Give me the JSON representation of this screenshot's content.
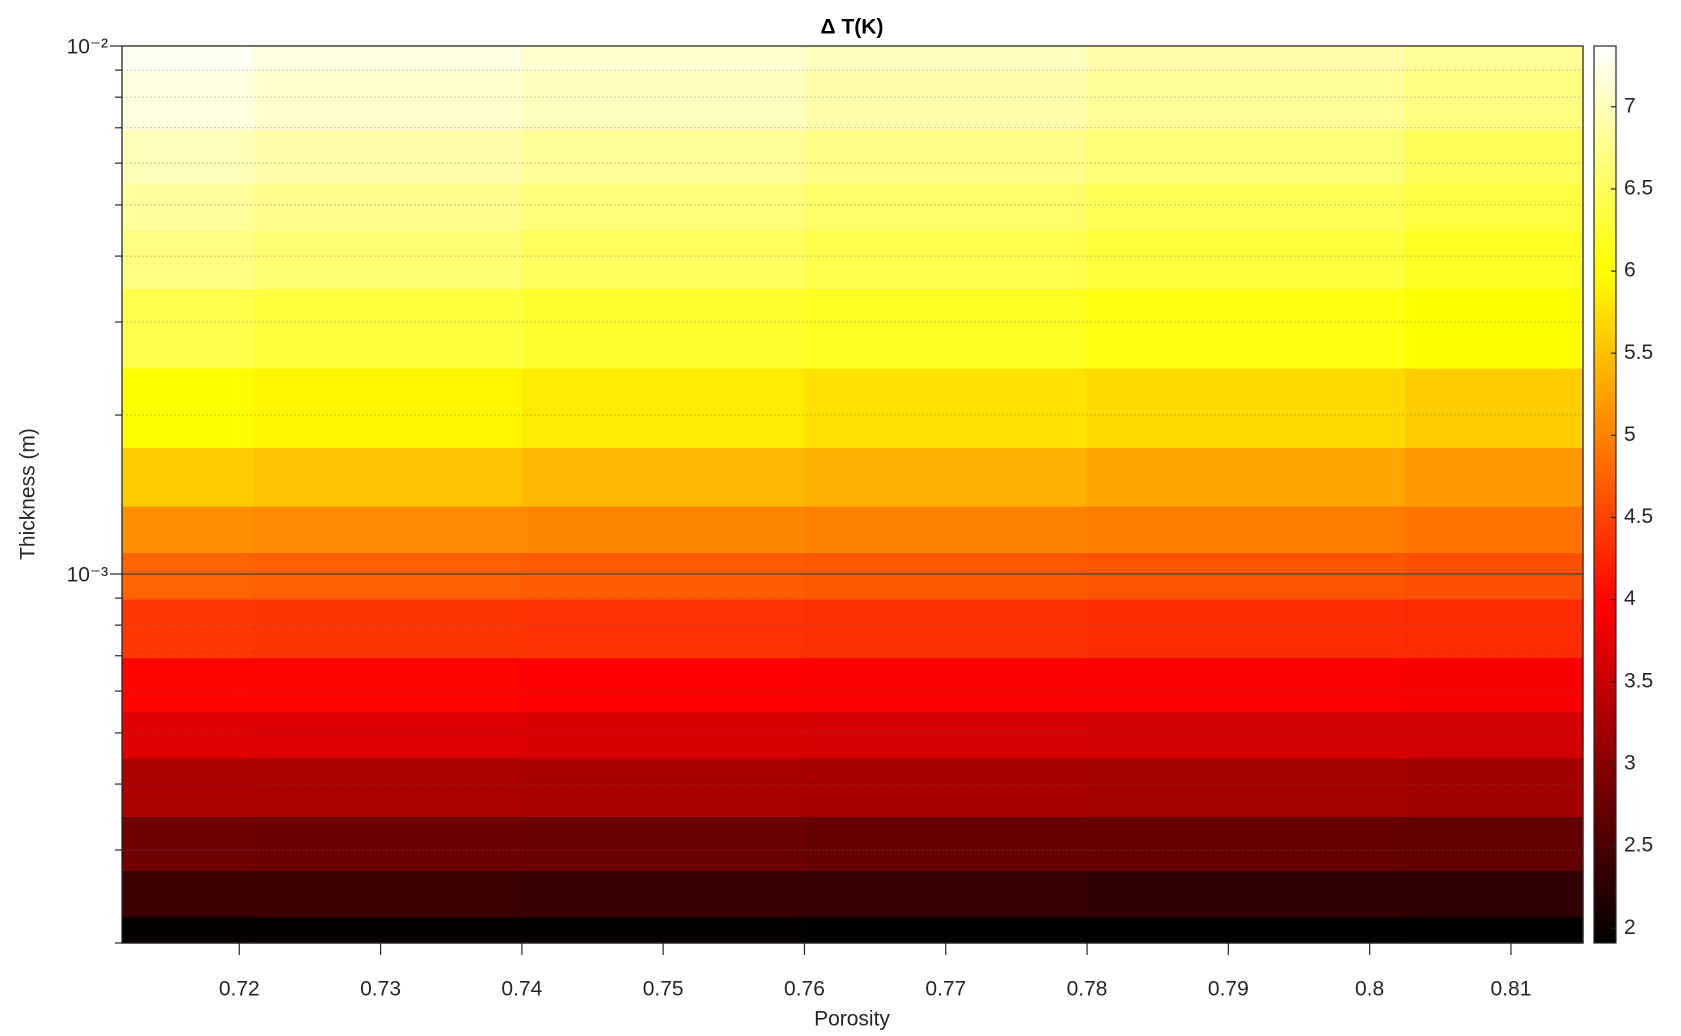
{
  "chart_data": {
    "type": "heatmap",
    "title": "Δ T(K)",
    "x_label": "Porosity",
    "y_label": "Thickness (m)",
    "colormap": "hot",
    "clim": [
      1.91,
      7.37
    ],
    "cticks": [
      2,
      2.5,
      3,
      3.5,
      4,
      4.5,
      5,
      5.5,
      6,
      6.5,
      7
    ],
    "xlim": [
      0.7117,
      0.8151
    ],
    "xticks": [
      0.72,
      0.73,
      0.74,
      0.75,
      0.76,
      0.77,
      0.78,
      0.79,
      0.8,
      0.81
    ],
    "ylim": [
      0.0002,
      0.01
    ],
    "y_log": true,
    "yticks": [
      {
        "value": 0.001,
        "label": "10⁻³"
      },
      {
        "value": 0.01,
        "label": "10⁻²"
      }
    ],
    "yminorticks": [
      0.0002,
      0.0003,
      0.0004,
      0.0005,
      0.0006,
      0.0007,
      0.0008,
      0.0009,
      0.002,
      0.003,
      0.004,
      0.005,
      0.006,
      0.007,
      0.008,
      0.009
    ],
    "grid": true,
    "minor_grid": true,
    "x": [
      0.712,
      0.73,
      0.75,
      0.77,
      0.79,
      0.815
    ],
    "y": [
      0.01,
      0.008,
      0.006,
      0.005,
      0.004,
      0.003,
      0.002,
      0.0015,
      0.0012,
      0.001,
      0.0008,
      0.0006,
      0.0005,
      0.0004,
      0.0003,
      0.00025,
      0.0002
    ],
    "z": [
      [
        7.3,
        7.21,
        7.12,
        7.02,
        6.92,
        6.8
      ],
      [
        7.2,
        7.11,
        7.02,
        6.92,
        6.82,
        6.7
      ],
      [
        7.0,
        6.91,
        6.82,
        6.72,
        6.62,
        6.5
      ],
      [
        6.85,
        6.76,
        6.67,
        6.57,
        6.47,
        6.35
      ],
      [
        6.7,
        6.61,
        6.52,
        6.42,
        6.32,
        6.2
      ],
      [
        6.4,
        6.33,
        6.25,
        6.18,
        6.1,
        6.0
      ],
      [
        6.0,
        5.93,
        5.85,
        5.78,
        5.7,
        5.6
      ],
      [
        5.6,
        5.53,
        5.45,
        5.38,
        5.3,
        5.2
      ],
      [
        5.1,
        5.06,
        5.03,
        4.99,
        4.95,
        4.9
      ],
      [
        4.75,
        4.72,
        4.69,
        4.67,
        4.64,
        4.6
      ],
      [
        4.4,
        4.38,
        4.36,
        4.34,
        4.32,
        4.3
      ],
      [
        4.0,
        3.98,
        3.96,
        3.94,
        3.92,
        3.9
      ],
      [
        3.7,
        3.68,
        3.66,
        3.64,
        3.62,
        3.6
      ],
      [
        3.3,
        3.28,
        3.26,
        3.24,
        3.22,
        3.2
      ],
      [
        2.8,
        2.78,
        2.76,
        2.74,
        2.72,
        2.7
      ],
      [
        2.4,
        2.38,
        2.36,
        2.34,
        2.32,
        2.3
      ],
      [
        1.95,
        1.94,
        1.94,
        1.93,
        1.93,
        1.92
      ]
    ]
  }
}
